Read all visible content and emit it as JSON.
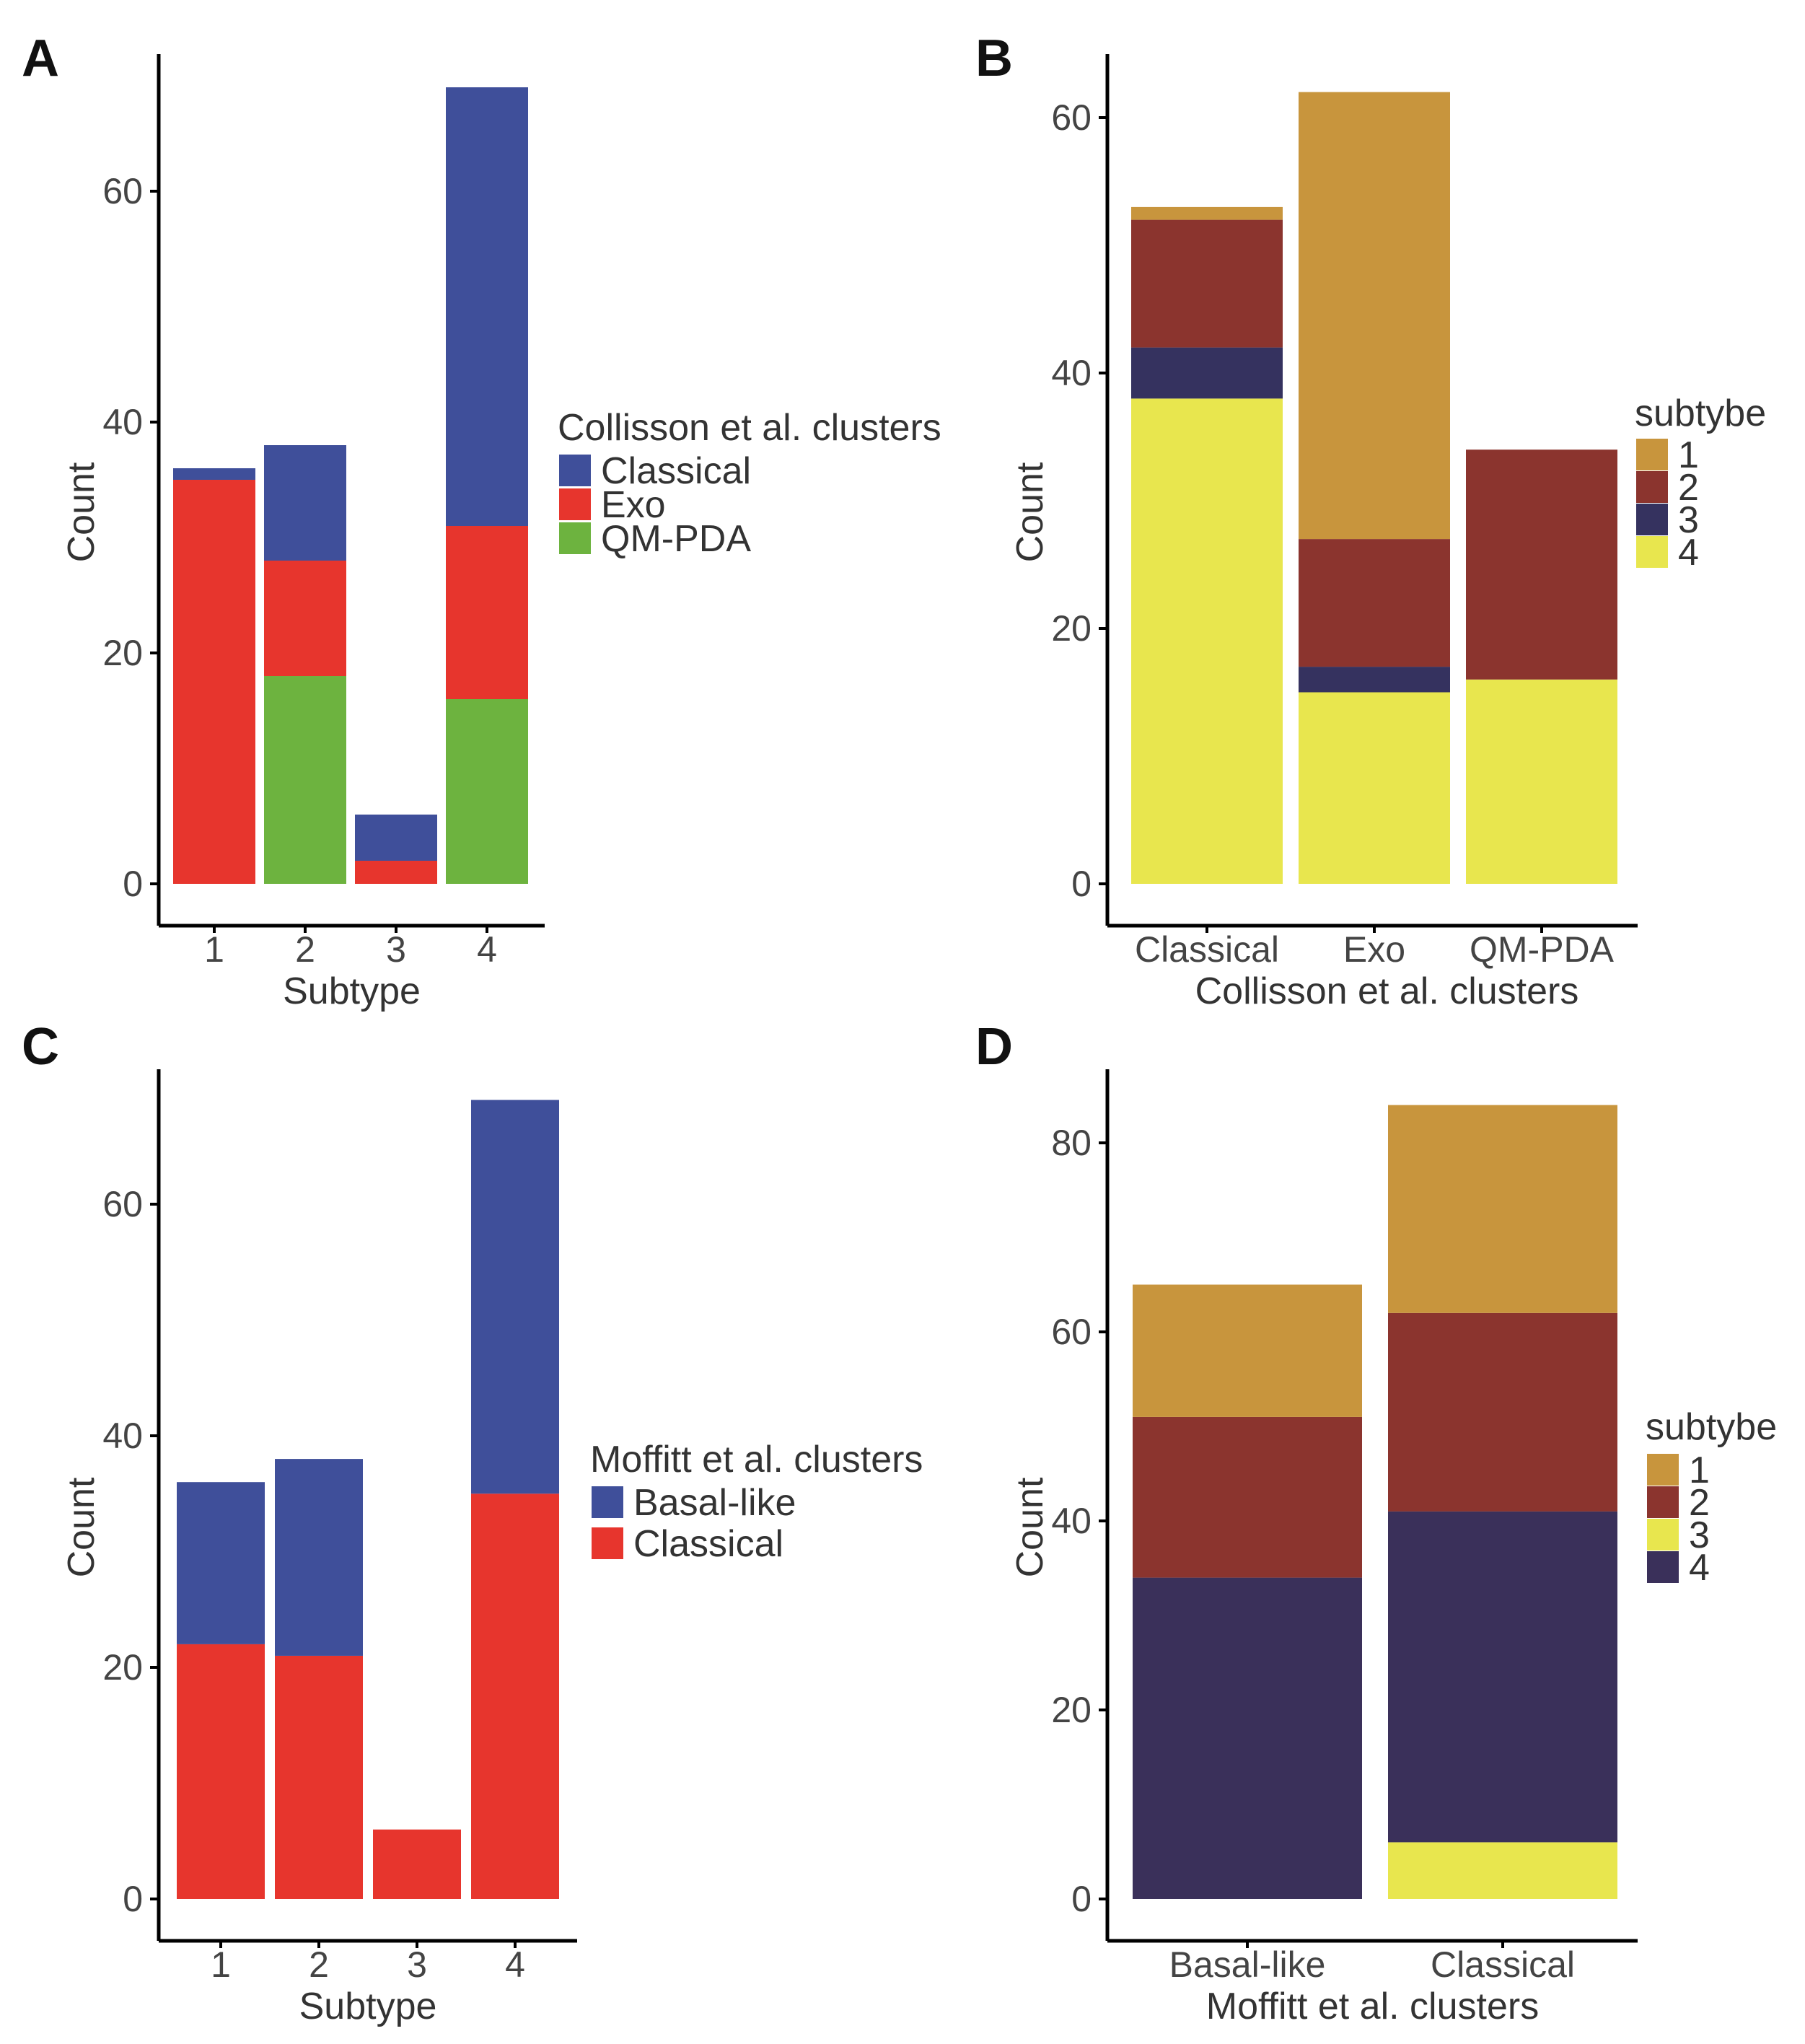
{
  "chart_data": [
    {
      "panel": "A",
      "type": "bar",
      "stacked": true,
      "xlabel": "Subtype",
      "ylabel": "Count",
      "categories": [
        "1",
        "2",
        "3",
        "4"
      ],
      "ylim": [
        0,
        70
      ],
      "yticks": [
        0,
        20,
        40,
        60
      ],
      "legend_title": "Collisson et al. clusters",
      "legend_position": "right",
      "series": [
        {
          "name": "Classical",
          "color": "#3f4f9a",
          "values": [
            1,
            10,
            4,
            38
          ]
        },
        {
          "name": "Exo",
          "color": "#e7352d",
          "values": [
            35,
            10,
            2,
            15
          ]
        },
        {
          "name": "QM-PDA",
          "color": "#6db33f",
          "values": [
            0,
            18,
            0,
            16
          ]
        }
      ],
      "stack_order": [
        "QM-PDA",
        "Exo",
        "Classical"
      ]
    },
    {
      "panel": "B",
      "type": "bar",
      "stacked": true,
      "xlabel": "Collisson et al. clusters",
      "ylabel": "Count",
      "categories": [
        "Classical",
        "Exo",
        "QM-PDA"
      ],
      "ylim": [
        0,
        62
      ],
      "yticks": [
        0,
        20,
        40,
        60
      ],
      "legend_title": "subtybe",
      "legend_position": "right",
      "series": [
        {
          "name": "1",
          "color": "#c8953d",
          "values": [
            1,
            35,
            0
          ]
        },
        {
          "name": "2",
          "color": "#8b342e",
          "values": [
            10,
            10,
            18
          ]
        },
        {
          "name": "3",
          "color": "#35325f",
          "values": [
            4,
            2,
            0
          ]
        },
        {
          "name": "4",
          "color": "#e8e64e",
          "values": [
            38,
            15,
            16
          ]
        }
      ],
      "stack_order": [
        "4",
        "3",
        "2",
        "1"
      ]
    },
    {
      "panel": "C",
      "type": "bar",
      "stacked": true,
      "xlabel": "Subtype",
      "ylabel": "Count",
      "categories": [
        "1",
        "2",
        "3",
        "4"
      ],
      "ylim": [
        0,
        70
      ],
      "yticks": [
        0,
        20,
        40,
        60
      ],
      "legend_title": "Moffitt et al. clusters",
      "legend_position": "right",
      "series": [
        {
          "name": "Basal-like",
          "color": "#3f4f9a",
          "values": [
            14,
            17,
            0,
            34
          ]
        },
        {
          "name": "Classical",
          "color": "#e7352d",
          "values": [
            22,
            21,
            6,
            35
          ]
        }
      ],
      "stack_order": [
        "Classical",
        "Basal-like"
      ]
    },
    {
      "panel": "D",
      "type": "bar",
      "stacked": true,
      "xlabel": "Moffitt et al. clusters",
      "ylabel": "Count",
      "categories": [
        "Basal-like",
        "Classical"
      ],
      "ylim": [
        0,
        85
      ],
      "yticks": [
        0,
        20,
        40,
        60,
        80
      ],
      "legend_title": "subtybe",
      "legend_position": "right",
      "series": [
        {
          "name": "1",
          "color": "#c8953d",
          "values": [
            14,
            22
          ]
        },
        {
          "name": "2",
          "color": "#8b342e",
          "values": [
            17,
            21
          ]
        },
        {
          "name": "3",
          "color": "#e8e64e",
          "values": [
            0,
            6
          ]
        },
        {
          "name": "4",
          "color": "#3a305a",
          "values": [
            34,
            35
          ]
        }
      ],
      "stack_order": [
        "3",
        "4",
        "2",
        "1"
      ]
    }
  ]
}
